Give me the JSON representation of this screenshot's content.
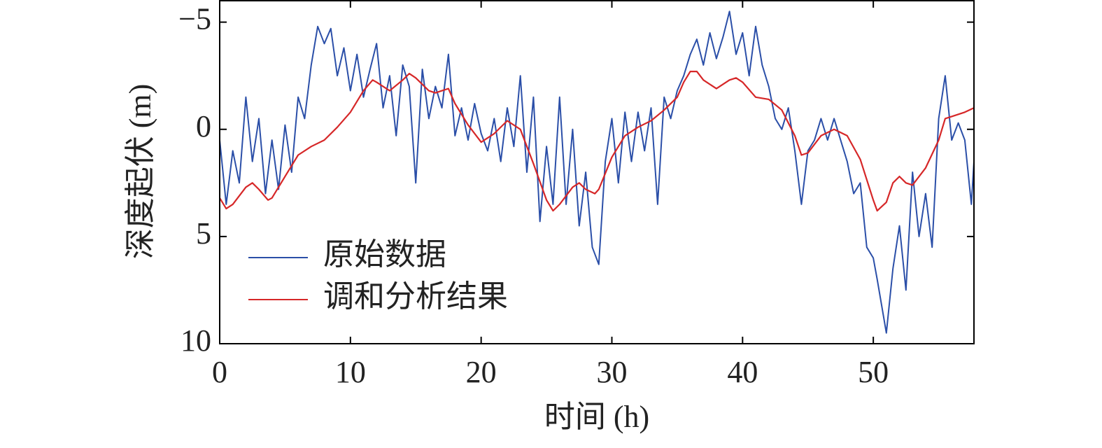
{
  "chart_data": {
    "type": "line",
    "x_label": "时间 (h)",
    "y_label": "深度起伏 (m)",
    "xlim": [
      0,
      57.7
    ],
    "xticks": [
      0,
      10,
      20,
      30,
      40,
      50
    ],
    "ylim": [
      10,
      -6
    ],
    "yticks": [
      {
        "value": -5,
        "label": "−5"
      },
      0,
      5,
      10
    ],
    "inverted_y": true,
    "legend": "lower left",
    "series": [
      {
        "name": "原始数据",
        "color": "#2b4fa8",
        "x": [
          0,
          0.5,
          1,
          1.5,
          2,
          2.5,
          3,
          3.5,
          4,
          4.5,
          5,
          5.5,
          6,
          6.5,
          7,
          7.5,
          8,
          8.5,
          9,
          9.5,
          10,
          10.5,
          11,
          11.5,
          12,
          12.5,
          13,
          13.5,
          14,
          14.5,
          15,
          15.5,
          16,
          16.5,
          17,
          17.5,
          18,
          18.5,
          19,
          19.5,
          20,
          20.5,
          21,
          21.5,
          22,
          22.5,
          23,
          23.5,
          24,
          24.5,
          25,
          25.5,
          26,
          26.5,
          27,
          27.5,
          28,
          28.5,
          29,
          29.5,
          30,
          30.5,
          31,
          31.5,
          32,
          32.5,
          33,
          33.5,
          34,
          34.5,
          35,
          35.5,
          36,
          36.5,
          37,
          37.5,
          38,
          38.5,
          39,
          39.5,
          40,
          40.5,
          41,
          41.5,
          42,
          42.5,
          43,
          43.5,
          44,
          44.5,
          45,
          45.5,
          46,
          46.5,
          47,
          47.5,
          48,
          48.5,
          49,
          49.5,
          50,
          50.3,
          51,
          51.5,
          52,
          52.5,
          53,
          53.5,
          54,
          54.5,
          55,
          55.5,
          56,
          56.5,
          57,
          57.5,
          57.7
        ],
        "values": [
          0.5,
          3.5,
          1.0,
          2.5,
          -1.5,
          1.5,
          -0.5,
          3.0,
          0.5,
          2.8,
          -0.2,
          2.0,
          -1.5,
          -0.5,
          -3.0,
          -4.8,
          -4.0,
          -4.7,
          -2.5,
          -3.8,
          -1.8,
          -3.5,
          -1.5,
          -2.8,
          -4.0,
          -1.0,
          -2.5,
          0.3,
          -3.0,
          -2.0,
          2.5,
          -2.8,
          -0.5,
          -2.0,
          -1.0,
          -3.5,
          0.3,
          -1.0,
          0.5,
          -1.2,
          0.2,
          1.0,
          -0.5,
          1.5,
          -1.0,
          0.8,
          -2.5,
          2.0,
          -1.5,
          4.3,
          0.8,
          3.5,
          -1.5,
          3.5,
          0.0,
          4.5,
          2.0,
          5.5,
          6.3,
          1.5,
          -0.5,
          2.5,
          -0.8,
          1.5,
          -0.8,
          1.0,
          -1.0,
          3.5,
          -1.5,
          -0.5,
          -1.8,
          -2.5,
          -3.5,
          -4.2,
          -3.0,
          -4.5,
          -3.3,
          -4.3,
          -5.5,
          -3.5,
          -4.5,
          -2.5,
          -4.8,
          -3.0,
          -2.0,
          -0.5,
          0.0,
          -1.0,
          1.0,
          3.5,
          1.0,
          0.5,
          -0.5,
          0.5,
          -0.5,
          0.5,
          1.5,
          3.0,
          2.5,
          5.5,
          6.0,
          7.0,
          9.5,
          6.5,
          4.5,
          7.5,
          2.0,
          5.0,
          3.0,
          5.5,
          -0.5,
          -2.5,
          0.5,
          -0.3,
          0.5,
          3.5,
          1.5
        ]
      },
      {
        "name": "调和分析结果",
        "color": "#d62728",
        "x": [
          0,
          0.5,
          1,
          2,
          2.5,
          3,
          3.7,
          4,
          5,
          6,
          7,
          8,
          9,
          10,
          11,
          11.7,
          12,
          13,
          14,
          14.5,
          15,
          16,
          16.5,
          17,
          17.5,
          18,
          19,
          20,
          21,
          22,
          23,
          24,
          25,
          25.5,
          26,
          27,
          27.5,
          28,
          28.7,
          29,
          30,
          31,
          32,
          33,
          34,
          35,
          35.5,
          36,
          36.5,
          37,
          38,
          39,
          39.5,
          40,
          41,
          42,
          43,
          44,
          44.5,
          45,
          46,
          47,
          48,
          49,
          50,
          50.3,
          51,
          51.5,
          52,
          52.5,
          53,
          54,
          55,
          55.5,
          56,
          57,
          57.7
        ],
        "values": [
          3.2,
          3.7,
          3.5,
          2.7,
          2.5,
          2.8,
          3.3,
          3.2,
          2.2,
          1.2,
          0.8,
          0.5,
          -0.1,
          -0.8,
          -1.8,
          -2.3,
          -2.2,
          -1.8,
          -2.3,
          -2.6,
          -2.4,
          -1.8,
          -1.7,
          -1.8,
          -1.9,
          -1.2,
          -0.2,
          0.6,
          0.2,
          -0.4,
          0.0,
          1.6,
          3.3,
          3.8,
          3.5,
          2.7,
          2.5,
          2.8,
          3.0,
          2.8,
          1.3,
          0.3,
          -0.1,
          -0.4,
          -0.9,
          -1.5,
          -2.2,
          -2.7,
          -2.7,
          -2.3,
          -1.9,
          -2.3,
          -2.4,
          -2.2,
          -1.5,
          -1.4,
          -0.9,
          0.3,
          1.2,
          1.1,
          0.3,
          0.0,
          0.3,
          1.4,
          3.3,
          3.8,
          3.4,
          2.5,
          2.2,
          2.5,
          2.6,
          1.8,
          0.5,
          -0.5,
          -0.6,
          -0.8,
          -1.0
        ]
      }
    ]
  }
}
